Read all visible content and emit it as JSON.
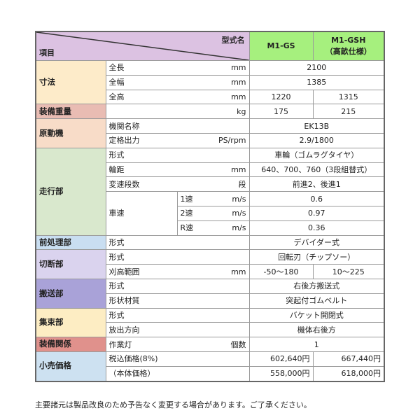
{
  "header": {
    "model_label": "型式名",
    "item_label": "項目",
    "models": [
      "M1-GS",
      "M1-GSH\n（高畝仕様）"
    ],
    "color_left": "#dcc2e2",
    "color_models": "#a6f07e"
  },
  "groups": [
    {
      "label": "寸法",
      "color": "#fdebc9",
      "rows": [
        {
          "item": "全長",
          "unit": "mm",
          "values": [
            "2100"
          ]
        },
        {
          "item": "全幅",
          "unit": "mm",
          "values": [
            "1385"
          ]
        },
        {
          "item": "全高",
          "unit": "mm",
          "values": [
            "1220",
            "1315"
          ]
        }
      ]
    },
    {
      "label": "装備重量",
      "color": "#e9bcb3",
      "rows": [
        {
          "item": "",
          "unit": "kg",
          "values": [
            "175",
            "215"
          ]
        }
      ]
    },
    {
      "label": "原動機",
      "color": "#f8dcc8",
      "rows": [
        {
          "item": "機関名称",
          "unit": "",
          "values": [
            "EK13B"
          ]
        },
        {
          "item": "定格出力",
          "unit": "PS/rpm",
          "values": [
            "2.9/1800"
          ]
        }
      ]
    },
    {
      "label": "走行部",
      "color": "#d9e8cd",
      "rows": [
        {
          "item": "形式",
          "unit": "",
          "values": [
            "車輪（ゴムラグタイヤ）"
          ]
        },
        {
          "item": "輪距",
          "unit": "mm",
          "values": [
            "640、700、760（3段組替式）"
          ]
        },
        {
          "item": "変速段数",
          "unit": "段",
          "values": [
            "前進2、後進1"
          ]
        },
        {
          "item": "車速",
          "subrows": [
            {
              "sub": "1速",
              "unit": "m/s",
              "values": [
                "0.6"
              ]
            },
            {
              "sub": "2速",
              "unit": "m/s",
              "values": [
                "0.97"
              ]
            },
            {
              "sub": "R速",
              "unit": "m/s",
              "values": [
                "0.36"
              ]
            }
          ]
        }
      ]
    },
    {
      "label": "前処理部",
      "color": "#c9def1",
      "rows": [
        {
          "item": "形式",
          "unit": "",
          "values": [
            "デバイダー式"
          ]
        }
      ]
    },
    {
      "label": "切断部",
      "color": "#dad3ee",
      "rows": [
        {
          "item": "形式",
          "unit": "",
          "values": [
            "回転刃（チップソー）"
          ]
        },
        {
          "item": "刈高範囲",
          "unit": "mm",
          "values": [
            "-50〜180",
            "10〜225"
          ]
        }
      ]
    },
    {
      "label": "搬送部",
      "color": "#a9a2d8",
      "rows": [
        {
          "item": "形式",
          "unit": "",
          "values": [
            "右後方搬送式"
          ]
        },
        {
          "item": "形状材質",
          "unit": "",
          "values": [
            "突起付ゴムベルト"
          ]
        }
      ]
    },
    {
      "label": "集束部",
      "color": "#fdedc3",
      "rows": [
        {
          "item": "形式",
          "unit": "",
          "values": [
            "バケット開閉式"
          ]
        },
        {
          "item": "放出方向",
          "unit": "",
          "values": [
            "機体右後方"
          ]
        }
      ]
    },
    {
      "label": "装備関係",
      "color": "#e0918c",
      "rows": [
        {
          "item": "作業灯",
          "unit": "個数",
          "values": [
            "1"
          ]
        }
      ]
    },
    {
      "label": "小売価格",
      "color": "#cde1f1",
      "rows": [
        {
          "item": "税込価格(8%)",
          "unit": "",
          "values": [
            "602,640円",
            "667,440円"
          ],
          "align": "right"
        },
        {
          "item": "（本体価格）",
          "unit": "",
          "values": [
            "558,000円",
            "618,000円"
          ],
          "align": "right"
        }
      ]
    }
  ],
  "note": "主要諸元は製品改良のため予告なく変更する場合があります。ご了承ください。"
}
